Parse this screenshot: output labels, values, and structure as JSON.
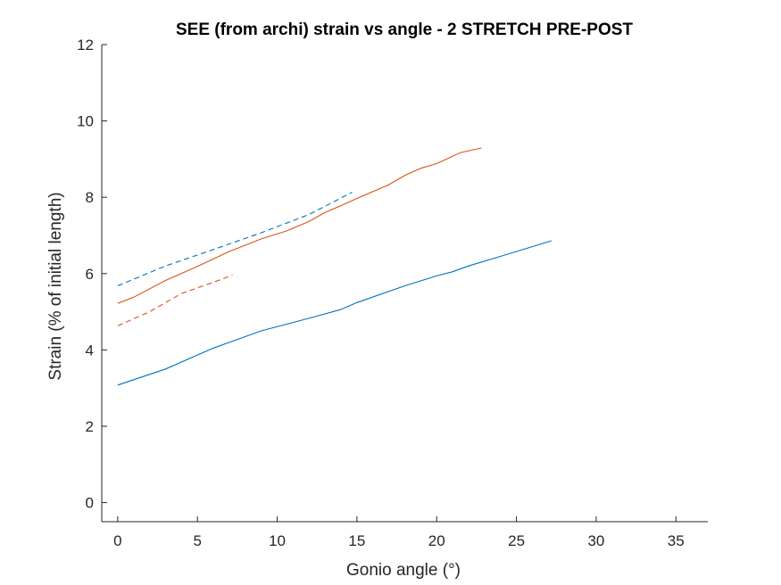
{
  "chart_data": {
    "type": "line",
    "title": "SEE (from archi) strain vs angle - 2 STRETCH PRE-POST",
    "xlabel": "Gonio angle (°)",
    "ylabel": "Strain (% of initial length)",
    "xlim": [
      -1,
      37
    ],
    "ylim": [
      -0.5,
      12
    ],
    "xticks": [
      0,
      5,
      10,
      15,
      20,
      25,
      30,
      35
    ],
    "yticks": [
      0,
      2,
      4,
      6,
      8,
      10,
      12
    ],
    "grid": false,
    "series": [
      {
        "name": "blue-solid",
        "color": "#0072BD",
        "dash": "solid",
        "x": [
          0,
          3,
          6,
          9,
          12,
          14,
          15,
          18,
          20,
          21,
          22,
          24,
          25,
          27.2
        ],
        "y": [
          3.08,
          3.5,
          4.05,
          4.5,
          4.83,
          5.06,
          5.24,
          5.68,
          5.94,
          6.05,
          6.2,
          6.45,
          6.58,
          6.86
        ]
      },
      {
        "name": "orange-solid",
        "color": "#D95319",
        "dash": "solid",
        "x": [
          0,
          1,
          3,
          5,
          7,
          9,
          10.6,
          12,
          13,
          14,
          15,
          17,
          18,
          19,
          20,
          21.5,
          22.8
        ],
        "y": [
          5.22,
          5.38,
          5.82,
          6.19,
          6.58,
          6.91,
          7.12,
          7.37,
          7.6,
          7.78,
          7.97,
          8.33,
          8.57,
          8.76,
          8.88,
          9.17,
          9.29
        ]
      },
      {
        "name": "blue-dashed",
        "color": "#0072BD",
        "dash": "dashed",
        "x": [
          0,
          3,
          6,
          9,
          12,
          14.7
        ],
        "y": [
          5.68,
          6.2,
          6.63,
          7.07,
          7.55,
          8.13
        ]
      },
      {
        "name": "orange-dashed",
        "color": "#D95319",
        "dash": "dashed",
        "x": [
          0,
          2,
          4,
          6,
          7.2
        ],
        "y": [
          4.63,
          5.0,
          5.48,
          5.77,
          5.96
        ]
      }
    ]
  }
}
